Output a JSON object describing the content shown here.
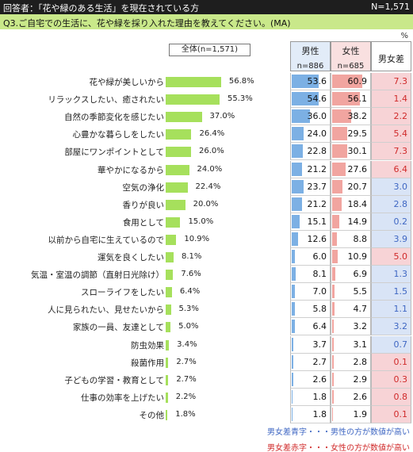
{
  "header": {
    "respondent": "回答者：「花や緑のある生活」を現在されている方",
    "n_total": "N=1,571",
    "question": "Q3.ご自宅での生活に、花や緑を採り入れた理由を教えてください。(MA)",
    "unit": "%"
  },
  "columns": {
    "total_label": "全体(n=1,571)",
    "male": "男性",
    "male_n": "n=886",
    "female": "女性",
    "female_n": "n=685",
    "diff": "男女差"
  },
  "notes": {
    "blue": "男女差青字・・・男性の方が数値が高い",
    "red": "男女差赤字・・・女性の方が数値が高い"
  },
  "colors": {
    "bar": "#a6e05c",
    "male_bar": "#7cb0e4",
    "female_bar": "#f1a5a0",
    "diff_blue": "#3f67c3",
    "diff_red": "#d02a2a"
  },
  "chart_data": {
    "type": "bar",
    "orientation": "horizontal",
    "xlim": [
      0,
      100
    ],
    "categories": [
      "花や緑が美しいから",
      "リラックスしたい、癒されたい",
      "自然の季節変化を感じたい",
      "心豊かな暮らしをしたい",
      "部屋にワンポイントとして",
      "華やかになるから",
      "空気の浄化",
      "香りが良い",
      "食用として",
      "以前から自宅に生えているので",
      "運気を良くしたい",
      "気温・室温の調節（直射日光除け）",
      "スローライフをしたい",
      "人に見られたい、見せたいから",
      "家族の一員、友達として",
      "防虫効果",
      "殺菌作用",
      "子どもの学習・教育として",
      "仕事の効率を上げたい",
      "その他"
    ],
    "series": [
      {
        "name": "全体(n=1,571)",
        "values": [
          56.8,
          55.3,
          37.0,
          26.4,
          26.0,
          24.0,
          22.4,
          20.0,
          15.0,
          10.9,
          8.1,
          7.6,
          6.4,
          5.3,
          5.0,
          3.4,
          2.7,
          2.7,
          2.2,
          1.8
        ],
        "labels": [
          "56.8%",
          "55.3%",
          "37.0%",
          "26.4%",
          "26.0%",
          "24.0%",
          "22.4%",
          "20.0%",
          "15.0%",
          "10.9%",
          "8.1%",
          "7.6%",
          "6.4%",
          "5.3%",
          "5.0%",
          "3.4%",
          "2.7%",
          "2.7%",
          "2.2%",
          "1.8%"
        ]
      },
      {
        "name": "男性",
        "values": [
          53.6,
          54.6,
          36.0,
          24.0,
          22.8,
          21.2,
          23.7,
          21.2,
          15.1,
          12.6,
          6.0,
          8.1,
          7.0,
          5.8,
          6.4,
          3.7,
          2.7,
          2.6,
          1.8,
          1.8
        ]
      },
      {
        "name": "女性",
        "values": [
          60.9,
          56.1,
          38.2,
          29.5,
          30.1,
          27.6,
          20.7,
          18.4,
          14.9,
          8.8,
          10.9,
          6.9,
          5.5,
          4.7,
          3.2,
          3.1,
          2.8,
          2.9,
          2.6,
          1.9
        ]
      },
      {
        "name": "男女差",
        "values": [
          7.3,
          1.4,
          2.2,
          5.4,
          7.3,
          6.4,
          3.0,
          2.8,
          0.2,
          3.9,
          5.0,
          1.3,
          1.5,
          1.1,
          3.2,
          0.7,
          0.1,
          0.3,
          0.8,
          0.1
        ],
        "higher": [
          "female",
          "female",
          "female",
          "female",
          "female",
          "female",
          "male",
          "male",
          "male",
          "male",
          "female",
          "male",
          "male",
          "male",
          "male",
          "male",
          "female",
          "female",
          "female",
          "female"
        ]
      }
    ]
  }
}
